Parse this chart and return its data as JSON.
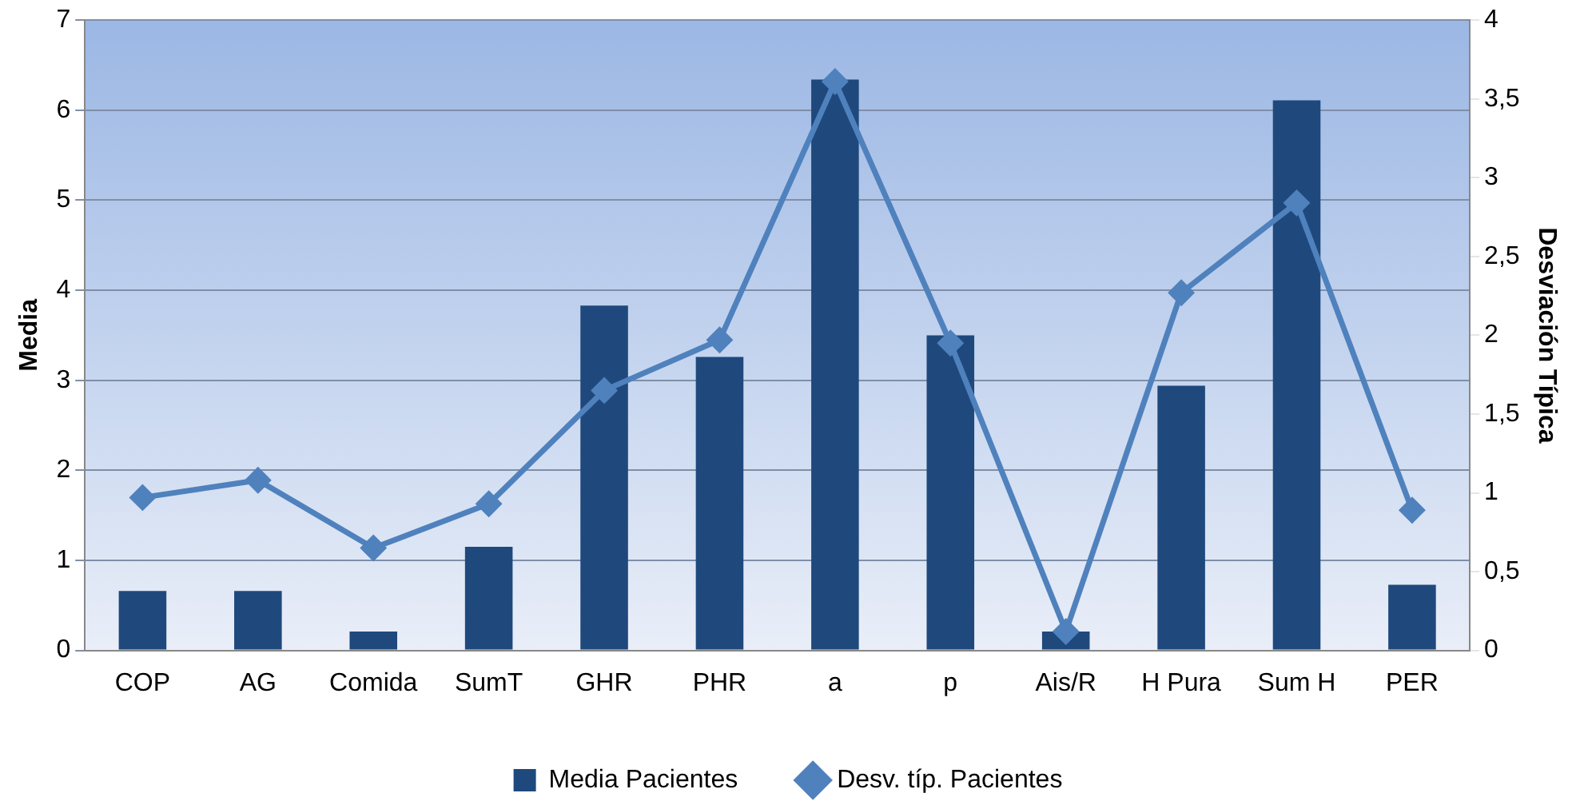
{
  "chart_data": {
    "type": "bar",
    "ylabel": "Media",
    "y2label": "Desviación Típica",
    "categories": [
      "COP",
      "AG",
      "Comida",
      "SumT",
      "GHR",
      "PHR",
      "a",
      "p",
      "Ais/R",
      "H Pura",
      "Sum H",
      "PER"
    ],
    "series": [
      {
        "name": "Media Pacientes",
        "color": "#1f497d",
        "values": [
          0.66,
          0.66,
          0.21,
          1.15,
          3.83,
          3.26,
          6.34,
          3.5,
          0.21,
          2.94,
          6.11,
          0.73
        ]
      },
      {
        "name": "Desv. típ. Pacientes",
        "type": "line",
        "axis": "y2",
        "color": "#4f81bd",
        "marker": "diamond",
        "values": [
          0.97,
          1.08,
          0.65,
          0.93,
          1.65,
          1.97,
          3.61,
          1.95,
          0.12,
          2.27,
          2.84,
          0.89
        ]
      }
    ],
    "ylim": [
      0,
      7
    ],
    "yticks": [
      0,
      1,
      2,
      3,
      4,
      5,
      6,
      7
    ],
    "y2lim": [
      0,
      4
    ],
    "y2ticks": [
      0,
      {
        "value": 0.5,
        "label": "0,5"
      },
      1,
      {
        "value": 1.5,
        "label": "1,5"
      },
      2,
      {
        "value": 2.5,
        "label": "2,5"
      },
      3,
      {
        "value": 3.5,
        "label": "3,5"
      },
      4
    ],
    "grid": "y",
    "legend": "bottom"
  }
}
